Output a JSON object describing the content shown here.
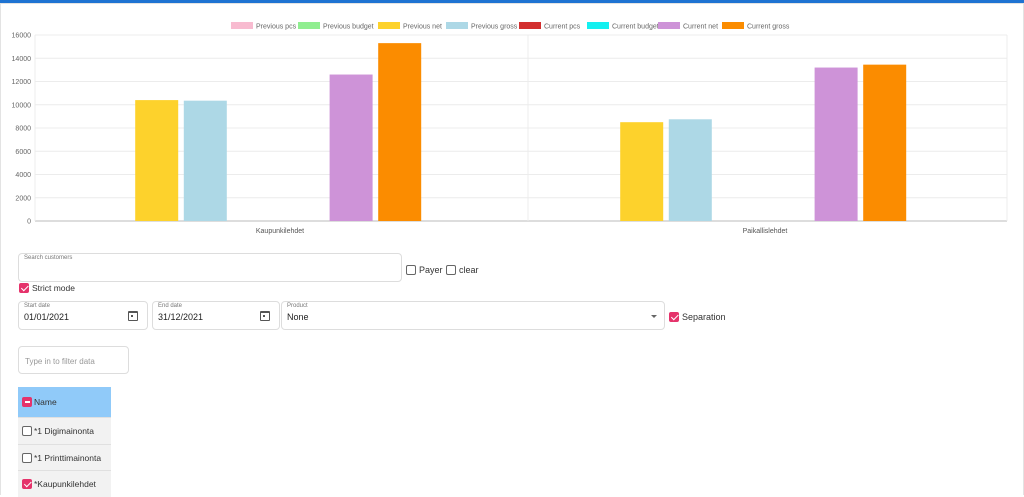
{
  "chart_data": {
    "type": "bar",
    "categories": [
      "Kaupunkilehdet",
      "Paikallislehdet"
    ],
    "series": [
      {
        "name": "Previous pcs",
        "color": "#f8bbd0",
        "values": [
          0,
          0
        ]
      },
      {
        "name": "Previous budget",
        "color": "#90ee90",
        "values": [
          0,
          0
        ]
      },
      {
        "name": "Previous net",
        "color": "#fdd22c",
        "values": [
          10400,
          8500
        ]
      },
      {
        "name": "Previous gross",
        "color": "#add8e6",
        "values": [
          10350,
          8750
        ]
      },
      {
        "name": "Current pcs",
        "color": "#d32f2f",
        "values": [
          0,
          0
        ]
      },
      {
        "name": "Current budget",
        "color": "#14f0f0",
        "values": [
          0,
          0
        ]
      },
      {
        "name": "Current net",
        "color": "#ce93d8",
        "values": [
          12600,
          13200
        ]
      },
      {
        "name": "Current gross",
        "color": "#fb8c00",
        "values": [
          15300,
          13450
        ]
      }
    ],
    "ylim": [
      0,
      16000
    ],
    "yticks": [
      0,
      2000,
      4000,
      6000,
      8000,
      10000,
      12000,
      14000,
      16000
    ],
    "legend": "top",
    "grid": true
  },
  "search": {
    "label": "Search customers",
    "value": ""
  },
  "payer": {
    "label": "Payer",
    "checked": false
  },
  "clear": {
    "label": "clear",
    "checked": false
  },
  "strict": {
    "label": "Strict mode",
    "checked": true
  },
  "start_date": {
    "label": "Start date",
    "value": "01/01/2021",
    "icon": "calendar-icon"
  },
  "end_date": {
    "label": "End date",
    "value": "31/12/2021",
    "icon": "calendar-icon"
  },
  "product": {
    "label": "Product",
    "value": "None"
  },
  "separation": {
    "label": "Separation",
    "checked": true
  },
  "filter": {
    "placeholder": "Type in to filter data"
  },
  "table": {
    "header": "Name",
    "rows": [
      {
        "label": "*1 Digimainonta",
        "checked": false
      },
      {
        "label": "*1 Printtimainonta",
        "checked": false
      },
      {
        "label": "*Kaupunkilehdet",
        "checked": true
      }
    ]
  },
  "colors": {
    "accent": "#e5336b",
    "header_bg": "#90caf9",
    "topbar": "#1e73d2"
  }
}
